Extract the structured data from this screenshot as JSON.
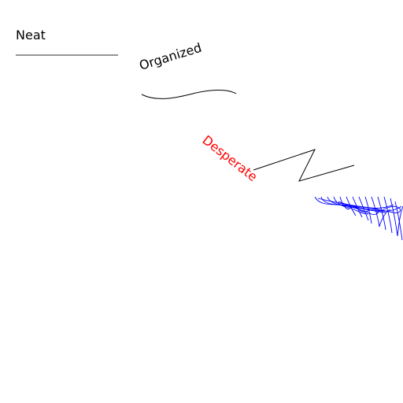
{
  "labels": {
    "neat": "Neat",
    "organized": "Organized",
    "desperate": "Desperate"
  },
  "colors": {
    "ink": "#000000",
    "line": "#555555",
    "accent": "#ff0000",
    "scribble": "#0000ff"
  }
}
